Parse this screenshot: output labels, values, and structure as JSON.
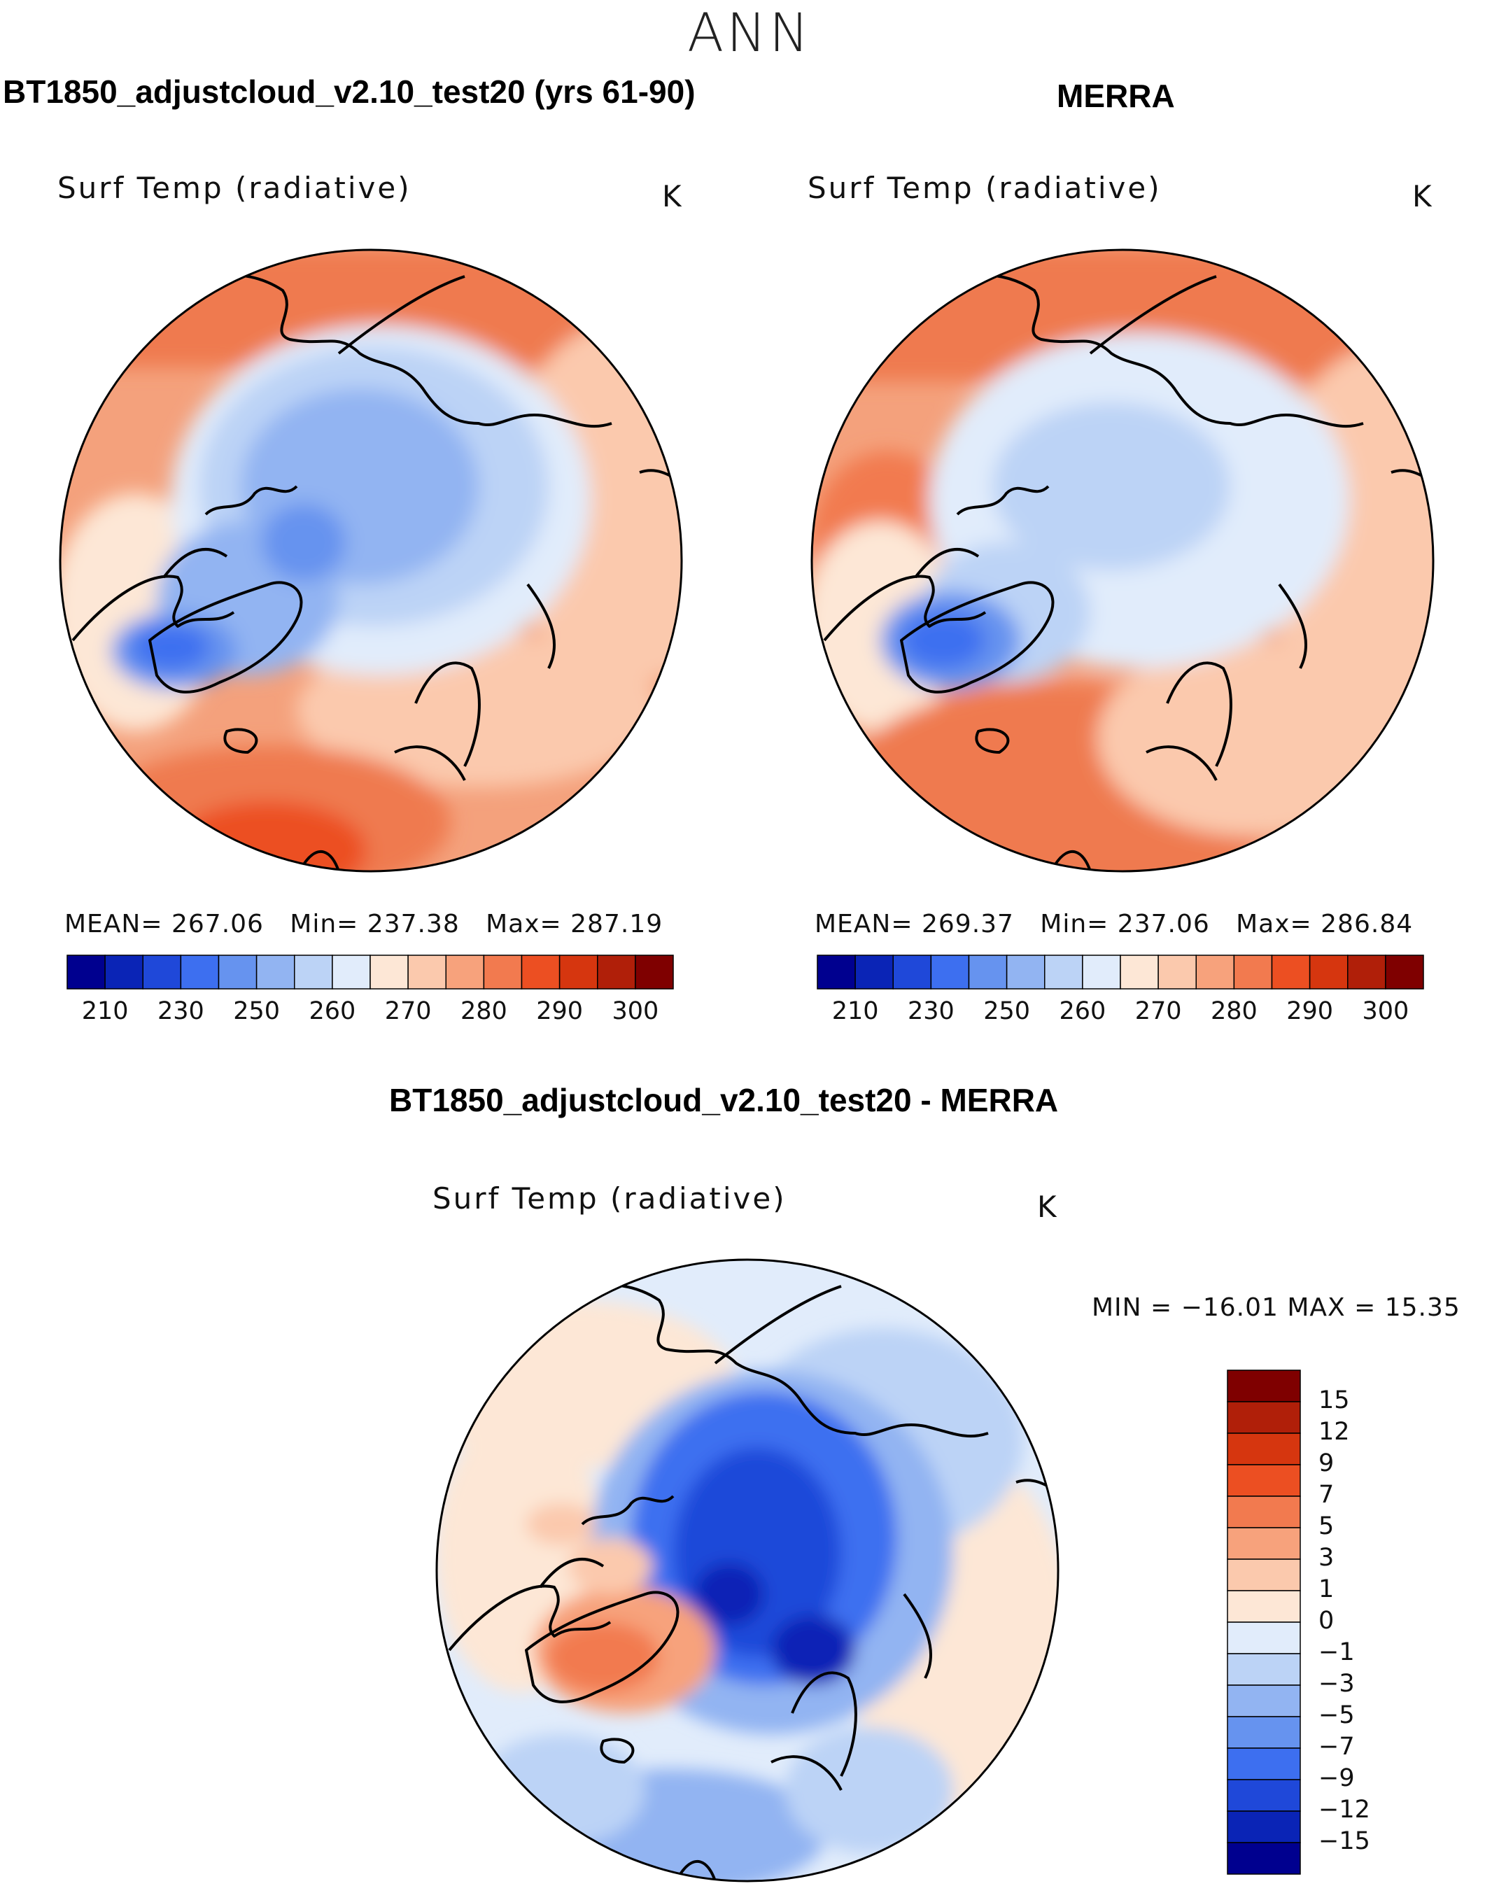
{
  "title": "ANN",
  "panels": [
    {
      "id": "model",
      "case_title": "BT1850_adjustcloud_v2.10_test20 (yrs 61-90)",
      "variable": "Surf Temp (radiative)",
      "units": "K",
      "stats": {
        "mean_label": "MEAN=",
        "mean": "267.06",
        "min_label": "Min=",
        "min": "237.38",
        "max_label": "Max=",
        "max": "287.19"
      }
    },
    {
      "id": "obs",
      "case_title": "MERRA",
      "variable": "Surf Temp (radiative)",
      "units": "K",
      "stats": {
        "mean_label": "MEAN=",
        "mean": "269.37",
        "min_label": "Min=",
        "min": "237.06",
        "max_label": "Max=",
        "max": "286.84"
      }
    },
    {
      "id": "diff",
      "case_title": "BT1850_adjustcloud_v2.10_test20 - MERRA",
      "variable": "Surf Temp (radiative)",
      "units": "K",
      "stats_text": "MIN = −16.01 MAX =   15.35"
    }
  ],
  "colorbar_abs": {
    "tick_labels": [
      "210",
      "230",
      "250",
      "260",
      "270",
      "280",
      "290",
      "300"
    ],
    "colors": [
      "#00008f",
      "#0a24b6",
      "#1f48d9",
      "#3d6ff0",
      "#6693ef",
      "#92b4f2",
      "#bcd3f6",
      "#e1ecfb",
      "#fde7d6",
      "#fbc9ad",
      "#f7a27c",
      "#f27a4f",
      "#ec4f22",
      "#d6360f",
      "#b01f09",
      "#7f0000"
    ]
  },
  "colorbar_diff": {
    "tick_labels": [
      "15",
      "12",
      "9",
      "7",
      "5",
      "3",
      "1",
      "0",
      "−1",
      "−3",
      "−5",
      "−7",
      "−9",
      "−12",
      "−15"
    ],
    "colors_top_to_bottom": [
      "#7f0000",
      "#b01f09",
      "#d6360f",
      "#ec4f22",
      "#f27a4f",
      "#f7a27c",
      "#fbc9ad",
      "#fde7d6",
      "#e1ecfb",
      "#bcd3f6",
      "#92b4f2",
      "#6693ef",
      "#3d6ff0",
      "#1f48d9",
      "#0a24b6",
      "#00008f"
    ]
  }
}
